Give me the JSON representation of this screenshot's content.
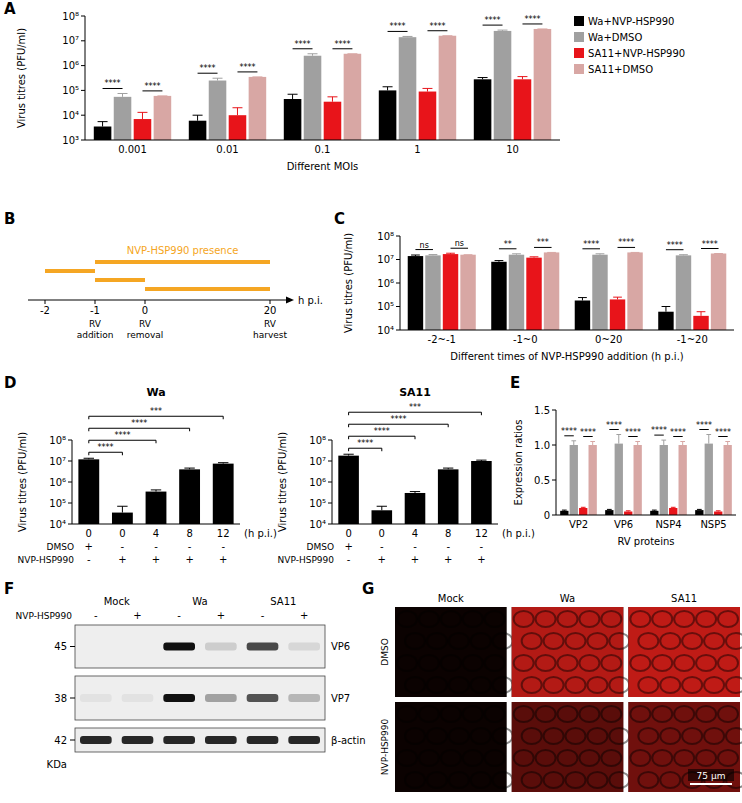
{
  "panel_labels": [
    "A",
    "B",
    "C",
    "D",
    "E",
    "F",
    "G"
  ],
  "chart_data": [
    {
      "type": "bar",
      "log": "y",
      "legend": "right",
      "x_label": "Different MOIs",
      "y_label": "Virus titres (PFU/ml)",
      "categories": [
        "0.001",
        "0.01",
        "0.1",
        "1",
        "10"
      ],
      "ylim": [
        1000,
        100000000
      ],
      "yticks": [
        {
          "value": 1000,
          "label": "10³"
        },
        {
          "value": 10000,
          "label": "10⁴"
        },
        {
          "value": 100000,
          "label": "10⁵"
        },
        {
          "value": 1000000,
          "label": "10⁶"
        },
        {
          "value": 10000000,
          "label": "10⁷"
        },
        {
          "value": 100000000,
          "label": "10⁸"
        }
      ],
      "series": [
        {
          "name": "Wa+NVP-HSP990",
          "color": "#000000",
          "values": [
            3500,
            6000,
            45000,
            100000,
            280000
          ],
          "errors": [
            2000,
            4000,
            25000,
            40000,
            50000
          ]
        },
        {
          "name": "Wa+DMSO",
          "color": "#a0a0a0",
          "values": [
            55000,
            250000,
            2500000,
            14000000,
            25000000
          ],
          "errors": [
            20000,
            60000,
            500000,
            1000000,
            2000000
          ]
        },
        {
          "name": "SA11+NVP-HSP990",
          "color": "#e8141a",
          "values": [
            7000,
            10000,
            35000,
            90000,
            280000
          ],
          "errors": [
            6000,
            10000,
            20000,
            30000,
            80000
          ]
        },
        {
          "name": "SA11+DMSO",
          "color": "#d8a7a4",
          "values": [
            60000,
            350000,
            3000000,
            16000000,
            30000000
          ],
          "errors": [
            0,
            0,
            0,
            0,
            0
          ]
        }
      ],
      "annotations": [
        {
          "category": 0,
          "series": [
            0,
            1
          ],
          "text": "****"
        },
        {
          "category": 0,
          "series": [
            2,
            3
          ],
          "text": "****"
        },
        {
          "category": 1,
          "series": [
            0,
            1
          ],
          "text": "****"
        },
        {
          "category": 1,
          "series": [
            2,
            3
          ],
          "text": "****"
        },
        {
          "category": 2,
          "series": [
            0,
            1
          ],
          "text": "****"
        },
        {
          "category": 2,
          "series": [
            2,
            3
          ],
          "text": "****"
        },
        {
          "category": 3,
          "series": [
            0,
            1
          ],
          "text": "****"
        },
        {
          "category": 3,
          "series": [
            2,
            3
          ],
          "text": "****"
        },
        {
          "category": 4,
          "series": [
            0,
            1
          ],
          "text": "****"
        },
        {
          "category": 4,
          "series": [
            2,
            3
          ],
          "text": "****"
        }
      ]
    },
    {
      "type": "bar",
      "log": "y",
      "x_label": "Different times of NVP-HSP990 addition (h p.i.)",
      "y_label": "Virus titres (PFU/ml)",
      "categories": [
        "-2~-1",
        "-1~0",
        "0~20",
        "-1~20"
      ],
      "ylim": [
        10000,
        100000000
      ],
      "yticks": [
        {
          "value": 10000,
          "label": "10⁴"
        },
        {
          "value": 100000,
          "label": "10⁵"
        },
        {
          "value": 1000000,
          "label": "10⁶"
        },
        {
          "value": 10000000,
          "label": "10⁷"
        },
        {
          "value": 100000000,
          "label": "10⁸"
        }
      ],
      "series": [
        {
          "color": "#000000",
          "values": [
            14000000,
            8000000,
            180000,
            60000
          ],
          "errors": [
            1500000,
            1000000,
            60000,
            40000
          ]
        },
        {
          "color": "#a0a0a0",
          "values": [
            15000000,
            16000000,
            16000000,
            15000000
          ],
          "errors": [
            1200000,
            1500000,
            1500000,
            1000000
          ]
        },
        {
          "color": "#e8141a",
          "values": [
            17000000,
            12000000,
            200000,
            40000
          ],
          "errors": [
            1500000,
            1000000,
            50000,
            20000
          ]
        },
        {
          "color": "#d8a7a4",
          "values": [
            16000000,
            20000000,
            20000000,
            18000000
          ],
          "errors": [
            0,
            0,
            0,
            0
          ]
        }
      ],
      "annotations": [
        {
          "category": 0,
          "series": [
            0,
            1
          ],
          "text": "ns"
        },
        {
          "category": 0,
          "series": [
            2,
            3
          ],
          "text": "ns"
        },
        {
          "category": 1,
          "series": [
            0,
            1
          ],
          "text": "**"
        },
        {
          "category": 1,
          "series": [
            2,
            3
          ],
          "text": "***"
        },
        {
          "category": 2,
          "series": [
            0,
            1
          ],
          "text": "****"
        },
        {
          "category": 2,
          "series": [
            2,
            3
          ],
          "text": "****"
        },
        {
          "category": 3,
          "series": [
            0,
            1
          ],
          "text": "****"
        },
        {
          "category": 3,
          "series": [
            2,
            3
          ],
          "text": "****"
        }
      ]
    },
    {
      "type": "bar",
      "log": "y",
      "title": "Wa",
      "x_label": "(h p.i.)",
      "y_label": "Virus titres (PFU/ml)",
      "categories": [
        "0",
        "0",
        "4",
        "8",
        "12"
      ],
      "ylim": [
        10000,
        100000000
      ],
      "yticks": [
        {
          "value": 10000,
          "label": "10⁴"
        },
        {
          "value": 100000,
          "label": "10⁵"
        },
        {
          "value": 1000000,
          "label": "10⁶"
        },
        {
          "value": 10000000,
          "label": "10⁷"
        },
        {
          "value": 100000000,
          "label": "10⁸"
        }
      ],
      "color": "#000000",
      "values": [
        12000000,
        35000,
        350000,
        4000000,
        7500000
      ],
      "errors": [
        1500000,
        35000,
        70000,
        600000,
        800000
      ],
      "treatments": [
        {
          "name": "DMSO",
          "values": [
            "+",
            "-",
            "-",
            "-",
            "-"
          ]
        },
        {
          "name": "NVP-HSP990",
          "values": [
            "-",
            "+",
            "+",
            "+",
            "+"
          ]
        }
      ],
      "annotations": [
        {
          "bars": [
            0,
            1
          ],
          "text": "****"
        },
        {
          "bars": [
            0,
            2
          ],
          "text": "****"
        },
        {
          "bars": [
            0,
            3
          ],
          "text": "****"
        },
        {
          "bars": [
            0,
            4
          ],
          "text": "***"
        }
      ]
    },
    {
      "type": "bar",
      "log": "y",
      "title": "SA11",
      "x_label": "(h p.i.)",
      "y_label": "Virus titres (PFU/ml)",
      "categories": [
        "0",
        "0",
        "4",
        "8",
        "12"
      ],
      "ylim": [
        10000,
        100000000
      ],
      "yticks": [
        {
          "value": 10000,
          "label": "10⁴"
        },
        {
          "value": 100000,
          "label": "10⁵"
        },
        {
          "value": 1000000,
          "label": "10⁶"
        },
        {
          "value": 10000000,
          "label": "10⁷"
        },
        {
          "value": 100000000,
          "label": "10⁸"
        }
      ],
      "color": "#000000",
      "values": [
        18000000,
        45000,
        300000,
        4000000,
        10000000
      ],
      "errors": [
        3000000,
        25000,
        50000,
        600000,
        1000000
      ],
      "treatments": [
        {
          "name": "DMSO",
          "values": [
            "+",
            "-",
            "-",
            "-",
            "-"
          ]
        },
        {
          "name": "NVP-HSP990",
          "values": [
            "-",
            "+",
            "+",
            "+",
            "+"
          ]
        }
      ],
      "annotations": [
        {
          "bars": [
            0,
            1
          ],
          "text": "****"
        },
        {
          "bars": [
            0,
            2
          ],
          "text": "****"
        },
        {
          "bars": [
            0,
            3
          ],
          "text": "****"
        },
        {
          "bars": [
            0,
            4
          ],
          "text": "***"
        }
      ]
    },
    {
      "type": "bar",
      "x_label": "RV proteins",
      "y_label": "Expression ratios",
      "categories": [
        "VP2",
        "VP6",
        "NSP4",
        "NSP5"
      ],
      "ylim": [
        0,
        1.5
      ],
      "yticks": [
        0,
        0.5,
        {
          "value": 1,
          "label": "1.0"
        },
        1.5
      ],
      "series": [
        {
          "color": "#000000",
          "values": [
            0.06,
            0.07,
            0.06,
            0.07
          ],
          "errors": [
            0.01,
            0.01,
            0.01,
            0.01
          ]
        },
        {
          "color": "#a0a0a0",
          "values": [
            1.0,
            1.02,
            1.0,
            1.02
          ],
          "errors": [
            0.06,
            0.13,
            0.07,
            0.13
          ]
        },
        {
          "color": "#e8141a",
          "values": [
            0.1,
            0.05,
            0.1,
            0.05
          ],
          "errors": [
            0.01,
            0.01,
            0.01,
            0.01
          ]
        },
        {
          "color": "#d8a7a4",
          "values": [
            1.0,
            1.0,
            1.0,
            1.0
          ],
          "errors": [
            0.05,
            0.05,
            0.05,
            0.05
          ]
        }
      ],
      "annotations": [
        {
          "category": 0,
          "series": [
            0,
            1
          ],
          "text": "****"
        },
        {
          "category": 0,
          "series": [
            2,
            3
          ],
          "text": "****"
        },
        {
          "category": 1,
          "series": [
            0,
            1
          ],
          "text": "****"
        },
        {
          "category": 1,
          "series": [
            2,
            3
          ],
          "text": "****"
        },
        {
          "category": 2,
          "series": [
            0,
            1
          ],
          "text": "****"
        },
        {
          "category": 2,
          "series": [
            2,
            3
          ],
          "text": "****"
        },
        {
          "category": 3,
          "series": [
            0,
            1
          ],
          "text": "****"
        },
        {
          "category": 3,
          "series": [
            2,
            3
          ],
          "text": "****"
        }
      ]
    }
  ],
  "timeline": {
    "title": "NVP-HSP990 presence",
    "ticks": [
      -2,
      -1,
      0,
      20
    ],
    "unit": "h p.i.",
    "color": "#f5a623",
    "segments": [
      [
        -1,
        20
      ],
      [
        -2,
        -1
      ],
      [
        -1,
        0
      ],
      [
        0,
        20
      ]
    ],
    "events": [
      {
        "at": -1,
        "label": "RV addition"
      },
      {
        "at": 0,
        "label": "RV removal"
      },
      {
        "at": 20,
        "label": "RV harvest"
      }
    ]
  },
  "blot": {
    "lane_groups": [
      "Mock",
      "Wa",
      "SA11"
    ],
    "treatment": "NVP-HSP990",
    "lanes": [
      "-",
      "+",
      "-",
      "+",
      "-",
      "+"
    ],
    "unit": "KDa",
    "rows": [
      {
        "protein": "VP6",
        "kda": 45,
        "bands": [
          0,
          0,
          1,
          0.15,
          0.75,
          0.1
        ]
      },
      {
        "protein": "VP7",
        "kda": 38,
        "bands": [
          0.05,
          0.05,
          1,
          0.35,
          0.7,
          0.25
        ]
      },
      {
        "protein": "β-actin",
        "kda": 42,
        "bands": [
          0.9,
          0.9,
          0.9,
          0.9,
          0.9,
          0.9
        ]
      }
    ]
  },
  "micrographs": {
    "columns": [
      "Mock",
      "Wa",
      "SA11"
    ],
    "rows": [
      "DMSO",
      "NVP-HSP990"
    ],
    "intensity": [
      [
        0.05,
        0.8,
        0.85
      ],
      [
        0.05,
        0.4,
        0.5
      ]
    ],
    "scale_bar": "75 μm"
  }
}
